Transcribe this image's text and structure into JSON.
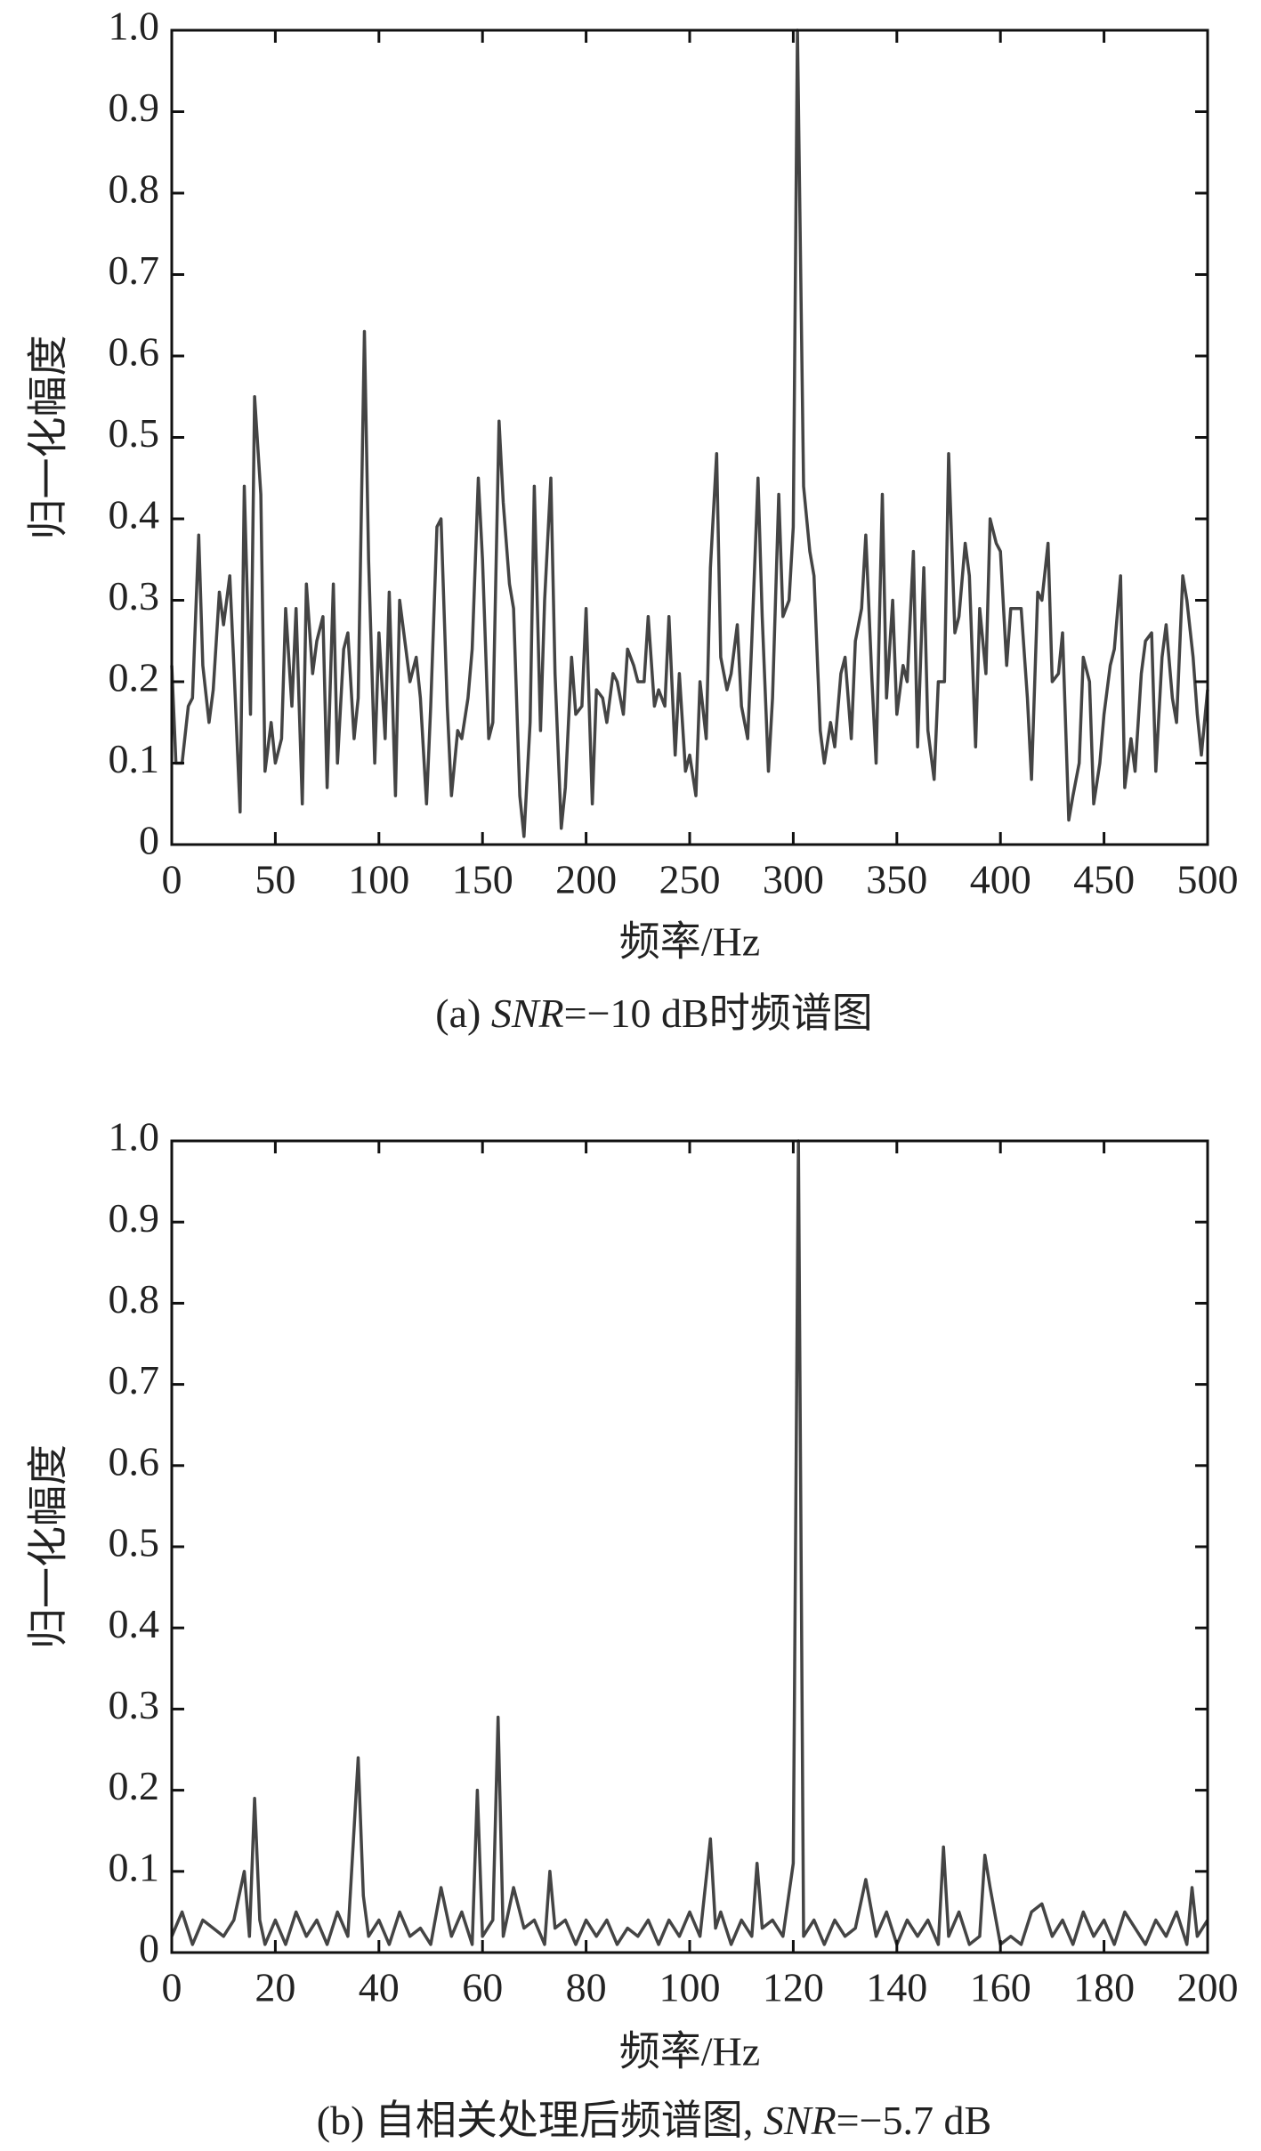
{
  "chart_data": [
    {
      "type": "line",
      "color": "#444444",
      "xlabel": "频率/Hz",
      "ylabel": "归一化幅度",
      "caption": [
        "(a) ",
        "SNR",
        "=−10 dB时频谱图"
      ],
      "xlim": [
        0,
        500
      ],
      "xticks": [
        0,
        50,
        100,
        150,
        200,
        250,
        300,
        350,
        400,
        450,
        500
      ],
      "ylim": [
        0,
        1
      ],
      "yticks": [
        0,
        0.1,
        0.2,
        0.3,
        0.4,
        0.5,
        0.6,
        0.7,
        0.8,
        0.9,
        {
          "value": 1,
          "label": "1.0"
        }
      ],
      "x": [
        0,
        2,
        5,
        8,
        10,
        13,
        15,
        18,
        20,
        23,
        25,
        28,
        30,
        33,
        35,
        38,
        40,
        43,
        45,
        48,
        50,
        53,
        55,
        58,
        60,
        63,
        65,
        68,
        70,
        73,
        75,
        78,
        80,
        83,
        85,
        88,
        90,
        93,
        95,
        98,
        100,
        103,
        105,
        108,
        110,
        113,
        115,
        118,
        120,
        123,
        125,
        128,
        130,
        133,
        135,
        138,
        140,
        143,
        145,
        148,
        150,
        153,
        155,
        158,
        160,
        163,
        165,
        168,
        170,
        173,
        175,
        178,
        180,
        183,
        185,
        188,
        190,
        193,
        195,
        198,
        200,
        203,
        205,
        208,
        210,
        213,
        215,
        218,
        220,
        223,
        225,
        228,
        230,
        233,
        235,
        238,
        240,
        243,
        245,
        248,
        250,
        253,
        255,
        258,
        260,
        263,
        265,
        268,
        270,
        273,
        275,
        278,
        280,
        283,
        285,
        288,
        290,
        293,
        295,
        298,
        300,
        302,
        305,
        308,
        310,
        313,
        315,
        318,
        320,
        323,
        325,
        328,
        330,
        333,
        335,
        338,
        340,
        343,
        345,
        348,
        350,
        353,
        355,
        358,
        360,
        363,
        365,
        368,
        370,
        373,
        375,
        378,
        380,
        383,
        385,
        388,
        390,
        393,
        395,
        398,
        400,
        403,
        405,
        408,
        410,
        413,
        415,
        418,
        420,
        423,
        425,
        428,
        430,
        433,
        435,
        438,
        440,
        443,
        445,
        448,
        450,
        453,
        455,
        458,
        460,
        463,
        465,
        468,
        470,
        473,
        475,
        478,
        480,
        483,
        485,
        488,
        490,
        493,
        495,
        497,
        500
      ],
      "values": [
        0.22,
        0.1,
        0.1,
        0.17,
        0.18,
        0.38,
        0.22,
        0.15,
        0.19,
        0.31,
        0.27,
        0.33,
        0.22,
        0.04,
        0.44,
        0.16,
        0.55,
        0.43,
        0.09,
        0.15,
        0.1,
        0.13,
        0.29,
        0.17,
        0.29,
        0.05,
        0.32,
        0.21,
        0.25,
        0.28,
        0.07,
        0.32,
        0.1,
        0.24,
        0.26,
        0.13,
        0.18,
        0.63,
        0.35,
        0.1,
        0.26,
        0.13,
        0.31,
        0.06,
        0.3,
        0.24,
        0.2,
        0.23,
        0.18,
        0.05,
        0.17,
        0.39,
        0.4,
        0.17,
        0.06,
        0.14,
        0.13,
        0.18,
        0.24,
        0.45,
        0.35,
        0.13,
        0.15,
        0.52,
        0.42,
        0.32,
        0.29,
        0.06,
        0.01,
        0.15,
        0.44,
        0.14,
        0.3,
        0.45,
        0.21,
        0.02,
        0.07,
        0.23,
        0.16,
        0.17,
        0.29,
        0.05,
        0.19,
        0.18,
        0.15,
        0.21,
        0.2,
        0.16,
        0.24,
        0.22,
        0.2,
        0.2,
        0.28,
        0.17,
        0.19,
        0.17,
        0.28,
        0.11,
        0.21,
        0.09,
        0.11,
        0.06,
        0.2,
        0.13,
        0.34,
        0.48,
        0.23,
        0.19,
        0.21,
        0.27,
        0.17,
        0.13,
        0.25,
        0.45,
        0.28,
        0.09,
        0.18,
        0.43,
        0.28,
        0.3,
        0.39,
        1.0,
        0.44,
        0.36,
        0.33,
        0.14,
        0.1,
        0.15,
        0.12,
        0.21,
        0.23,
        0.13,
        0.25,
        0.29,
        0.38,
        0.2,
        0.1,
        0.43,
        0.18,
        0.3,
        0.16,
        0.22,
        0.2,
        0.36,
        0.12,
        0.34,
        0.14,
        0.08,
        0.2,
        0.2,
        0.48,
        0.26,
        0.28,
        0.37,
        0.33,
        0.12,
        0.29,
        0.21,
        0.4,
        0.37,
        0.36,
        0.22,
        0.29,
        0.29,
        0.29,
        0.18,
        0.08,
        0.31,
        0.3,
        0.37,
        0.2,
        0.21,
        0.26,
        0.03,
        0.06,
        0.1,
        0.23,
        0.2,
        0.05,
        0.1,
        0.16,
        0.22,
        0.24,
        0.33,
        0.07,
        0.13,
        0.09,
        0.21,
        0.25,
        0.26,
        0.09,
        0.23,
        0.27,
        0.18,
        0.15,
        0.33,
        0.3,
        0.23,
        0.16,
        0.11,
        0.19
      ]
    },
    {
      "type": "line",
      "color": "#444444",
      "xlabel": "频率/Hz",
      "ylabel": "归一化幅度",
      "caption": [
        "(b) 自相关处理后频谱图, ",
        "SNR",
        "=−5.7 dB"
      ],
      "xlim": [
        0,
        200
      ],
      "xticks": [
        0,
        20,
        40,
        60,
        80,
        100,
        120,
        140,
        160,
        180,
        200
      ],
      "ylim": [
        0,
        1
      ],
      "yticks": [
        0,
        0.1,
        0.2,
        0.3,
        0.4,
        0.5,
        0.6,
        0.7,
        0.8,
        0.9,
        {
          "value": 1,
          "label": "1.0"
        }
      ],
      "x": [
        0,
        2,
        4,
        6,
        8,
        10,
        12,
        14,
        15,
        16,
        17,
        18,
        20,
        22,
        24,
        26,
        28,
        30,
        32,
        34,
        36,
        37,
        38,
        40,
        42,
        44,
        46,
        48,
        50,
        52,
        54,
        56,
        58,
        59,
        60,
        62,
        63,
        64,
        66,
        68,
        70,
        72,
        73,
        74,
        76,
        78,
        80,
        82,
        84,
        86,
        88,
        90,
        92,
        94,
        96,
        98,
        100,
        102,
        104,
        105,
        106,
        108,
        110,
        112,
        113,
        114,
        116,
        118,
        120,
        121,
        122,
        124,
        126,
        128,
        130,
        132,
        134,
        136,
        138,
        140,
        142,
        144,
        146,
        148,
        149,
        150,
        152,
        154,
        156,
        157,
        158,
        160,
        162,
        164,
        166,
        168,
        170,
        172,
        174,
        176,
        178,
        180,
        182,
        184,
        186,
        188,
        190,
        192,
        194,
        196,
        197,
        198,
        200
      ],
      "values": [
        0.02,
        0.05,
        0.01,
        0.04,
        0.03,
        0.02,
        0.04,
        0.1,
        0.02,
        0.19,
        0.04,
        0.01,
        0.04,
        0.01,
        0.05,
        0.02,
        0.04,
        0.01,
        0.05,
        0.02,
        0.24,
        0.07,
        0.02,
        0.04,
        0.01,
        0.05,
        0.02,
        0.03,
        0.01,
        0.08,
        0.02,
        0.05,
        0.01,
        0.2,
        0.02,
        0.04,
        0.29,
        0.02,
        0.08,
        0.03,
        0.04,
        0.01,
        0.1,
        0.03,
        0.04,
        0.01,
        0.04,
        0.02,
        0.04,
        0.01,
        0.03,
        0.02,
        0.04,
        0.01,
        0.04,
        0.02,
        0.05,
        0.02,
        0.14,
        0.03,
        0.05,
        0.01,
        0.04,
        0.02,
        0.11,
        0.03,
        0.04,
        0.02,
        0.11,
        1.0,
        0.02,
        0.04,
        0.01,
        0.04,
        0.02,
        0.03,
        0.09,
        0.02,
        0.05,
        0.01,
        0.04,
        0.02,
        0.04,
        0.01,
        0.13,
        0.02,
        0.05,
        0.01,
        0.02,
        0.12,
        0.08,
        0.01,
        0.02,
        0.01,
        0.05,
        0.06,
        0.02,
        0.04,
        0.01,
        0.05,
        0.02,
        0.04,
        0.01,
        0.05,
        0.03,
        0.01,
        0.04,
        0.02,
        0.05,
        0.01,
        0.08,
        0.02,
        0.04
      ]
    }
  ]
}
